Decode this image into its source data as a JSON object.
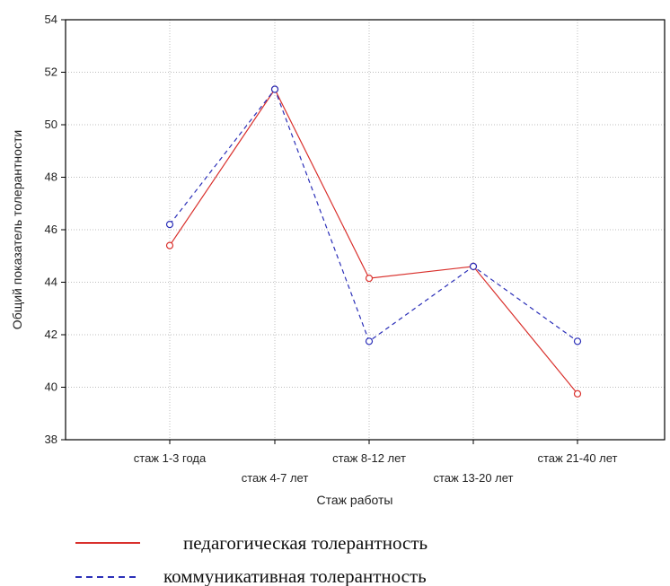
{
  "chart_data": {
    "type": "line",
    "title": "",
    "xlabel": "Стаж работы",
    "ylabel": "Общий показатель толерантности",
    "categories": [
      "стаж 1-3 года",
      "стаж 4-7 лет",
      "стаж 8-12 лет",
      "стаж 13-20 лет",
      "стаж 21-40 лет"
    ],
    "ylim": [
      38,
      54
    ],
    "yticks": [
      "38",
      "40",
      "42",
      "44",
      "46",
      "48",
      "50",
      "52",
      "54"
    ],
    "grid": true,
    "legend_position": "bottom",
    "series": [
      {
        "name": "педагогическая толерантность",
        "values": [
          45.4,
          51.35,
          44.15,
          44.6,
          39.75
        ],
        "color": "#d9302c",
        "style": "solid"
      },
      {
        "name": "коммуникативная толерантность",
        "values": [
          46.2,
          51.35,
          41.75,
          44.6,
          41.75
        ],
        "color": "#2b2fb8",
        "style": "dashed"
      }
    ]
  }
}
